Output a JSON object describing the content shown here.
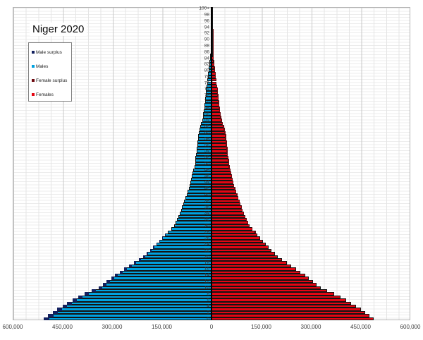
{
  "title": "Niger 2020",
  "legend": {
    "items": [
      {
        "label": "Male surplus",
        "color": "#12205f"
      },
      {
        "label": "Males",
        "color": "#00a2e0"
      },
      {
        "label": "Female surplus",
        "color": "#6d0a10"
      },
      {
        "label": "Females",
        "color": "#e40613"
      }
    ]
  },
  "chart_data": {
    "type": "bar",
    "subtype": "population-pyramid",
    "title": "Niger 2020",
    "orientation": "horizontal-mirrored",
    "grid": "on",
    "legend_position": "top-left",
    "ages": {
      "min": 0,
      "max": "100+",
      "bar_per_year": true
    },
    "xlim_each_side": 600000,
    "x_tick_step": 150000,
    "x_tick_labels": [
      "600,000",
      "450,000",
      "300,000",
      "150,000",
      "0",
      "150,000",
      "300,000",
      "450,000",
      "600,000"
    ],
    "age_tick_step": 2,
    "age_tick_labels": [
      "0",
      "2",
      "4",
      "6",
      "8",
      "10",
      "12",
      "14",
      "16",
      "18",
      "20",
      "22",
      "24",
      "26",
      "28",
      "30",
      "32",
      "34",
      "36",
      "38",
      "40",
      "42",
      "44",
      "46",
      "48",
      "50",
      "52",
      "54",
      "56",
      "58",
      "60",
      "62",
      "64",
      "66",
      "68",
      "70",
      "72",
      "74",
      "76",
      "78",
      "80",
      "82",
      "84",
      "86",
      "88",
      "90",
      "92",
      "94",
      "96",
      "98",
      "100+"
    ],
    "series": [
      {
        "name": "Males",
        "side": "left",
        "values": [
          506000,
          493000,
          479000,
          465000,
          450000,
          436000,
          420000,
          402000,
          382000,
          361000,
          341000,
          328000,
          316000,
          303000,
          291000,
          277000,
          263000,
          248000,
          234000,
          220000,
          207000,
          196000,
          186000,
          176000,
          167000,
          158000,
          149000,
          140000,
          131000,
          122000,
          113000,
          108000,
          104000,
          100000,
          96000,
          92000,
          89000,
          85000,
          82000,
          78000,
          75000,
          72000,
          69000,
          66000,
          63000,
          61000,
          59000,
          57000,
          55000,
          52000,
          50000,
          49000,
          48000,
          46000,
          45000,
          44000,
          43000,
          42000,
          41000,
          40000,
          39000,
          37000,
          34000,
          31000,
          28000,
          26000,
          25000,
          23500,
          22000,
          21000,
          20000,
          19000,
          18000,
          17000,
          16000,
          15000,
          13500,
          12500,
          11300,
          10000,
          8700,
          7500,
          6400,
          5400,
          4500,
          3700,
          3000,
          2400,
          1800,
          1400,
          1000,
          750,
          550,
          400,
          280,
          200,
          130,
          90,
          60,
          40,
          50
        ]
      },
      {
        "name": "Females",
        "side": "right",
        "values": [
          489000,
          477000,
          463500,
          450000,
          435500,
          422000,
          406500,
          389000,
          369500,
          349000,
          330000,
          317500,
          306000,
          293500,
          282000,
          268500,
          255000,
          240500,
          227000,
          213500,
          201000,
          190500,
          181000,
          171500,
          163000,
          155000,
          147000,
          139000,
          132000,
          123500,
          115000,
          110000,
          106000,
          102500,
          98500,
          94500,
          92000,
          88000,
          85000,
          81000,
          78000,
          75000,
          72000,
          69000,
          66000,
          64000,
          62000,
          60000,
          58000,
          55000,
          53500,
          52500,
          51500,
          49500,
          48500,
          48000,
          47000,
          46000,
          45000,
          44000,
          43000,
          41000,
          37800,
          34600,
          31400,
          29200,
          28200,
          26500,
          25000,
          24000,
          23000,
          21800,
          20800,
          19600,
          18600,
          17400,
          15900,
          14700,
          13500,
          12000,
          10700,
          9300,
          8100,
          6900,
          5900,
          4900,
          4000,
          3300,
          2500,
          2000,
          1500,
          1150,
          850,
          620,
          440,
          320,
          210,
          150,
          100,
          70,
          90
        ]
      }
    ],
    "colors": {
      "males": "#00a2e0",
      "male_surplus": "#12205f",
      "females": "#e40613",
      "female_surplus": "#6d0a10",
      "bar_outline": "#141414",
      "center_axis": "#000000",
      "grid_major": "#c9c9c9",
      "grid_minor": "#e4e4e4"
    }
  }
}
